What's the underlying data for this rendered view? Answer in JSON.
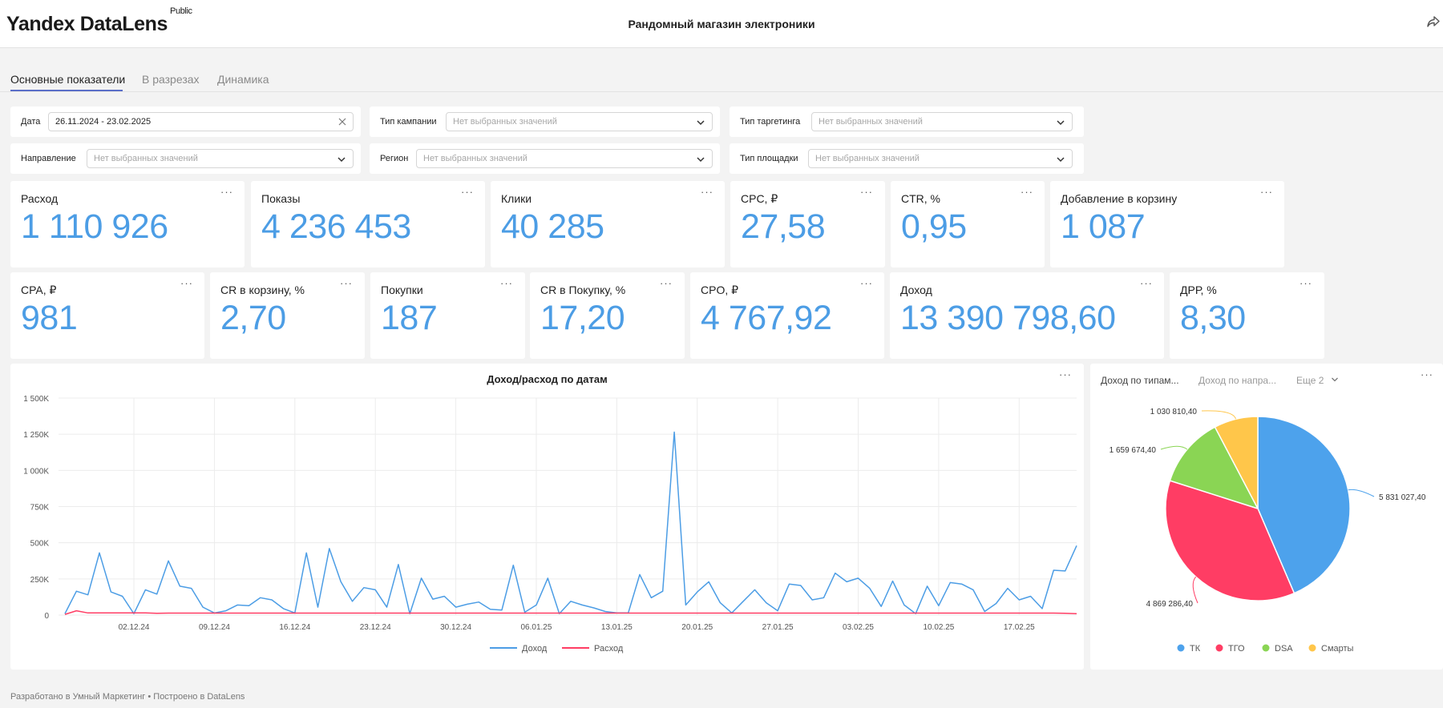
{
  "app": {
    "logo": "Yandex DataLens",
    "logo_badge": "Public",
    "title": "Рандомный магазин электроники"
  },
  "tabs": [
    {
      "label": "Основные показатели",
      "active": true
    },
    {
      "label": "В разрезах",
      "active": false
    },
    {
      "label": "Динамика",
      "active": false
    }
  ],
  "filters": {
    "date": {
      "label": "Дата",
      "value": "26.11.2024 - 23.02.2025"
    },
    "campaign_type": {
      "label": "Тип кампании",
      "placeholder": "Нет выбранных значений"
    },
    "targeting_type": {
      "label": "Тип таргетинга",
      "placeholder": "Нет выбранных значений"
    },
    "direction": {
      "label": "Направление",
      "placeholder": "Нет выбранных значений"
    },
    "region": {
      "label": "Регион",
      "placeholder": "Нет выбранных значений"
    },
    "placement_type": {
      "label": "Тип площадки",
      "placeholder": "Нет выбранных значений"
    }
  },
  "kpis_row1": [
    {
      "label": "Расход",
      "value": "1 110 926"
    },
    {
      "label": "Показы",
      "value": "4 236 453"
    },
    {
      "label": "Клики",
      "value": "40 285"
    },
    {
      "label": "CPC, ₽",
      "value": "27,58"
    },
    {
      "label": "CTR, %",
      "value": "0,95"
    },
    {
      "label": "Добавление в корзину",
      "value": "1 087"
    }
  ],
  "kpis_row2": [
    {
      "label": "CPA, ₽",
      "value": "981"
    },
    {
      "label": "CR в корзину, %",
      "value": "2,70"
    },
    {
      "label": "Покупки",
      "value": "187"
    },
    {
      "label": "CR в Покупку, %",
      "value": "17,20"
    },
    {
      "label": "CPO, ₽",
      "value": "4 767,92"
    },
    {
      "label": "Доход",
      "value": "13 390 798,60"
    },
    {
      "label": "ДРР, %",
      "value": "8,30"
    }
  ],
  "menu_glyph": "···",
  "pie_tabs": {
    "tab1": "Доход по типам...",
    "tab2": "Доход по напра...",
    "more": "Еще 2"
  },
  "footer": "Разработано в Умный Маркетинг • Построено в DataLens",
  "colors": {
    "accent": "#4c9de5",
    "income": "#4c9de5",
    "expense": "#ff3d64",
    "tk": "#4da2ec",
    "tgo": "#ff3d64",
    "dsa": "#8ad554",
    "smart": "#ffc64a"
  },
  "chart_data": [
    {
      "type": "line",
      "title": "Доход/расход по датам",
      "ylim": [
        0,
        1500000
      ],
      "y_ticks": [
        0,
        250000,
        500000,
        750000,
        1000000,
        1250000,
        1500000
      ],
      "y_tick_labels": [
        "0",
        "250K",
        "500K",
        "750K",
        "1 000K",
        "1 250K",
        "1 500K"
      ],
      "x_tick_labels": [
        "02.12.24",
        "09.12.24",
        "16.12.24",
        "23.12.24",
        "30.12.24",
        "06.01.25",
        "13.01.25",
        "20.01.25",
        "27.01.25",
        "03.02.25",
        "10.02.25",
        "17.02.25"
      ],
      "x_start": "26.11.2024",
      "x_end": "23.02.2025",
      "grid": true,
      "legend": "bottom",
      "series": [
        {
          "name": "Доход",
          "values": [
            10000,
            165000,
            140000,
            430000,
            160000,
            130000,
            10000,
            175000,
            145000,
            375000,
            200000,
            185000,
            55000,
            15000,
            30000,
            70000,
            65000,
            120000,
            105000,
            45000,
            15000,
            430000,
            55000,
            460000,
            230000,
            95000,
            190000,
            175000,
            55000,
            350000,
            10000,
            255000,
            110000,
            130000,
            55000,
            75000,
            90000,
            40000,
            35000,
            345000,
            20000,
            70000,
            255000,
            10000,
            95000,
            70000,
            50000,
            25000,
            15000,
            15000,
            280000,
            120000,
            165000,
            1265000,
            70000,
            160000,
            230000,
            85000,
            15000,
            95000,
            175000,
            85000,
            30000,
            215000,
            205000,
            105000,
            120000,
            290000,
            230000,
            255000,
            185000,
            60000,
            235000,
            70000,
            10000,
            200000,
            65000,
            225000,
            215000,
            175000,
            25000,
            80000,
            185000,
            105000,
            130000,
            45000,
            310000,
            305000,
            480000
          ]
        },
        {
          "name": "Расход",
          "values": [
            5000,
            30000,
            15000,
            15000,
            15000,
            15000,
            15000,
            15000,
            12000,
            14000,
            14000,
            14000,
            14000,
            14000,
            14000,
            14000,
            14000,
            14000,
            14000,
            14000,
            14000,
            14000,
            14000,
            14000,
            14000,
            14000,
            14000,
            14000,
            14000,
            14000,
            14000,
            14000,
            14000,
            14000,
            14000,
            14000,
            14000,
            14000,
            14000,
            14000,
            14000,
            14000,
            14000,
            14000,
            14000,
            14000,
            14000,
            14000,
            14000,
            14000,
            14000,
            14000,
            14000,
            14000,
            14000,
            14000,
            14000,
            14000,
            14000,
            14000,
            14000,
            14000,
            14000,
            14000,
            14000,
            14000,
            14000,
            14000,
            14000,
            14000,
            14000,
            14000,
            14000,
            14000,
            14000,
            14000,
            14000,
            14000,
            14000,
            14000,
            14000,
            14000,
            14000,
            14000,
            14000,
            14000,
            14000,
            12000,
            10000
          ]
        }
      ]
    },
    {
      "type": "pie",
      "legend": "bottom",
      "slices": [
        {
          "name": "ТК",
          "value": 5831027.4,
          "label": "5 831 027,40",
          "color": "#4da2ec"
        },
        {
          "name": "ТГО",
          "value": 4869286.4,
          "label": "4 869 286,40",
          "color": "#ff3d64"
        },
        {
          "name": "DSA",
          "value": 1659674.4,
          "label": "1 659 674,40",
          "color": "#8ad554"
        },
        {
          "name": "Смарты",
          "value": 1030810.4,
          "label": "1 030 810,40",
          "color": "#ffc64a"
        }
      ]
    }
  ]
}
